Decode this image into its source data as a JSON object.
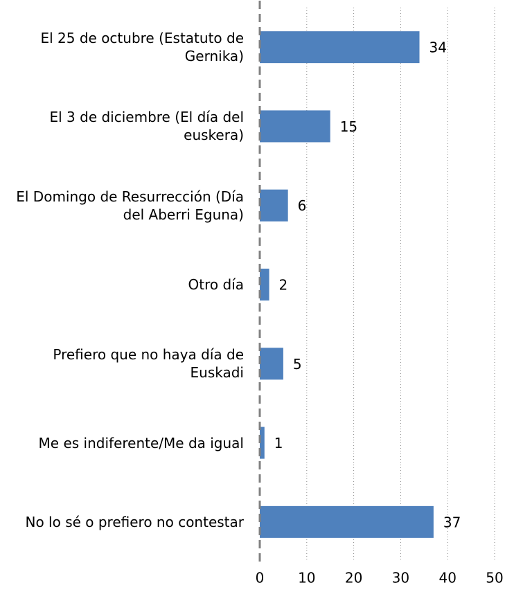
{
  "chart_data": {
    "type": "bar",
    "orientation": "horizontal",
    "categories": [
      "El 25 de octubre (Estatuto de Gernika)",
      "El 3 de diciembre (El día del euskera)",
      "El Domingo de Resurrección (Día del Aberri Eguna)",
      "Otro día",
      "Prefiero que no haya día de Euskadi",
      "Me es indiferente/Me da igual",
      "No lo sé o prefiero no contestar"
    ],
    "values": [
      34,
      15,
      6,
      2,
      5,
      1,
      37
    ],
    "color": "#4f81bd",
    "xlim": [
      0,
      50
    ],
    "xticks": [
      0,
      10,
      20,
      30,
      40,
      50
    ],
    "grid": true
  }
}
